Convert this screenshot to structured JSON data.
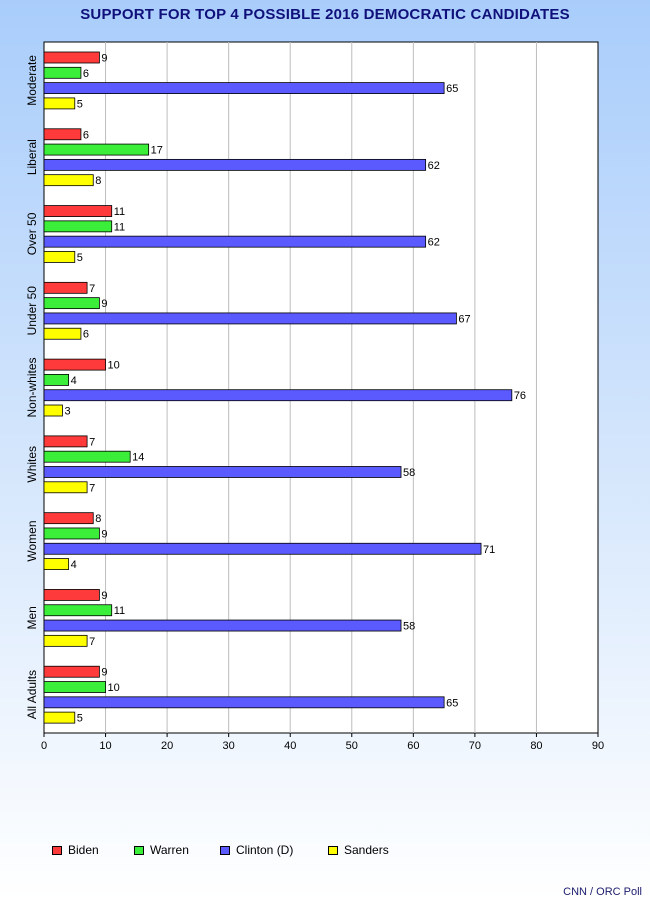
{
  "chart_data": {
    "type": "bar",
    "orientation": "horizontal",
    "title": "SUPPORT FOR TOP 4 POSSIBLE 2016 DEMOCRATIC CANDIDATES",
    "categories": [
      "Moderate",
      "Liberal",
      "Over 50",
      "Under 50",
      "Non-whites",
      "Whites",
      "Women",
      "Men",
      "All Adults"
    ],
    "series": [
      {
        "name": "Biden",
        "color": "#ff3a3a",
        "values": [
          9,
          6,
          11,
          7,
          10,
          7,
          8,
          9,
          9
        ]
      },
      {
        "name": "Warren",
        "color": "#3aee3a",
        "values": [
          6,
          17,
          11,
          9,
          4,
          14,
          9,
          11,
          10
        ]
      },
      {
        "name": "Clinton (D)",
        "color": "#5a5aff",
        "values": [
          65,
          62,
          62,
          67,
          76,
          58,
          71,
          58,
          65
        ]
      },
      {
        "name": "Sanders",
        "color": "#ffff00",
        "values": [
          5,
          8,
          5,
          6,
          3,
          7,
          4,
          7,
          5
        ]
      }
    ],
    "xlim": [
      0,
      90
    ],
    "xticks": [
      0,
      10,
      20,
      30,
      40,
      50,
      60,
      70,
      80,
      90
    ],
    "grid": true,
    "legend_position": "bottom-left"
  },
  "source": "CNN / ORC Poll"
}
